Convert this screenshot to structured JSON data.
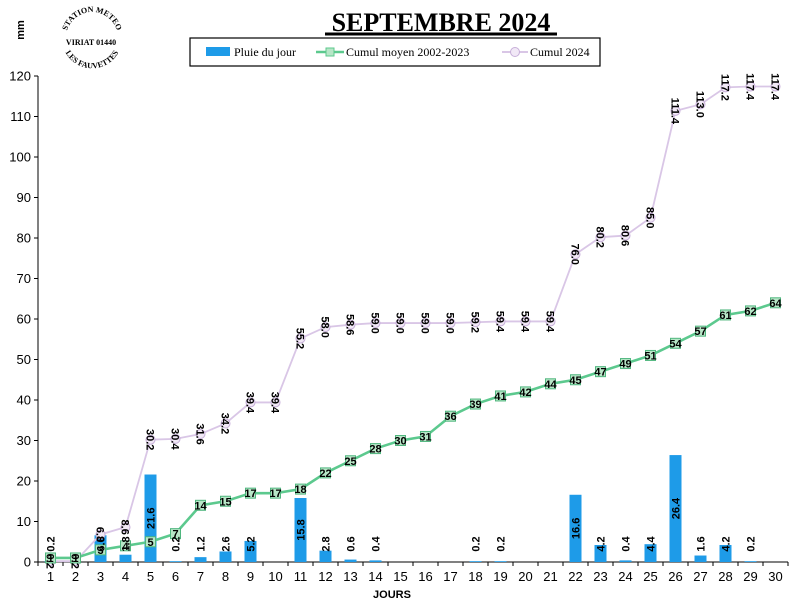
{
  "chart_data": {
    "type": "bar",
    "title": "SEPTEMBRE 2024",
    "ylabel": "mm",
    "xlabel": "JOURS",
    "ylim": [
      0,
      120
    ],
    "yticks": [
      0,
      10,
      20,
      30,
      40,
      50,
      60,
      70,
      80,
      90,
      100,
      110,
      120
    ],
    "categories": [
      "1",
      "2",
      "3",
      "4",
      "5",
      "6",
      "7",
      "8",
      "9",
      "10",
      "11",
      "12",
      "13",
      "14",
      "15",
      "16",
      "17",
      "18",
      "19",
      "20",
      "21",
      "22",
      "23",
      "24",
      "25",
      "26",
      "27",
      "28",
      "29",
      "30"
    ],
    "legend_position": "top-center",
    "series": [
      {
        "name": "Pluie du jour",
        "kind": "bar",
        "color": "#1E9BE8",
        "values": [
          0.2,
          0,
          6.6,
          1.8,
          21.6,
          0.2,
          1.2,
          2.6,
          5.2,
          0,
          15.8,
          2.8,
          0.6,
          0.4,
          0,
          0,
          0,
          0.2,
          0.2,
          0,
          0,
          16.6,
          4.2,
          0.4,
          4.4,
          26.4,
          1.6,
          4.2,
          0.2,
          0
        ],
        "labels": [
          "0.2",
          "",
          "6.6",
          "1.8",
          "21.6",
          "0.2",
          "1.2",
          "2.6",
          "5.2",
          "",
          "15.8",
          "2.8",
          "0.6",
          "0.4",
          "",
          "",
          "",
          "0.2",
          "0.2",
          "",
          "",
          "16.6",
          "4.2",
          "0.4",
          "4.4",
          "26.4",
          "1.6",
          "4.2",
          "0.2",
          ""
        ]
      },
      {
        "name": "Cumul moyen 2002-2023",
        "kind": "line",
        "color": "#5CC98E",
        "values": [
          1,
          1,
          3,
          4,
          5,
          7,
          14,
          15,
          17,
          17,
          18,
          22,
          25,
          28,
          30,
          31,
          36,
          39,
          41,
          42,
          44,
          45,
          47,
          49,
          51,
          54,
          57,
          61,
          62,
          64
        ],
        "labels": [
          "1",
          "1",
          "3",
          "4",
          "5",
          "7",
          "14",
          "15",
          "17",
          "17",
          "18",
          "22",
          "25",
          "28",
          "30",
          "31",
          "36",
          "39",
          "41",
          "42",
          "44",
          "45",
          "47",
          "49",
          "51",
          "54",
          "57",
          "61",
          "62",
          "64"
        ]
      },
      {
        "name": "Cumul 2024",
        "kind": "line",
        "color": "#D9C6E6",
        "values": [
          0.2,
          0.2,
          6.8,
          8.6,
          30.2,
          30.4,
          31.6,
          34.2,
          39.4,
          39.4,
          55.2,
          58.0,
          58.6,
          59.0,
          59.0,
          59.0,
          59.0,
          59.2,
          59.4,
          59.4,
          59.4,
          76.0,
          80.2,
          80.6,
          85.0,
          111.4,
          113.0,
          117.2,
          117.4,
          117.4
        ],
        "labels": [
          "0.2",
          "0.2",
          "6.8",
          "8.6",
          "30.2",
          "30.4",
          "31.6",
          "34.2",
          "39.4",
          "39.4",
          "55.2",
          "58.0",
          "58.6",
          "59.0",
          "59.0",
          "59.0",
          "59.0",
          "59.2",
          "59.4",
          "59.4",
          "59.4",
          "76.0",
          "80.2",
          "80.6",
          "85.0",
          "111.4",
          "113.0",
          "117.2",
          "117.4",
          "117.4"
        ]
      }
    ]
  },
  "logo": {
    "top_text": "STATION METEO",
    "middle_text": "VIRIAT 01440",
    "bottom_text": "LES FAUVETTES"
  }
}
